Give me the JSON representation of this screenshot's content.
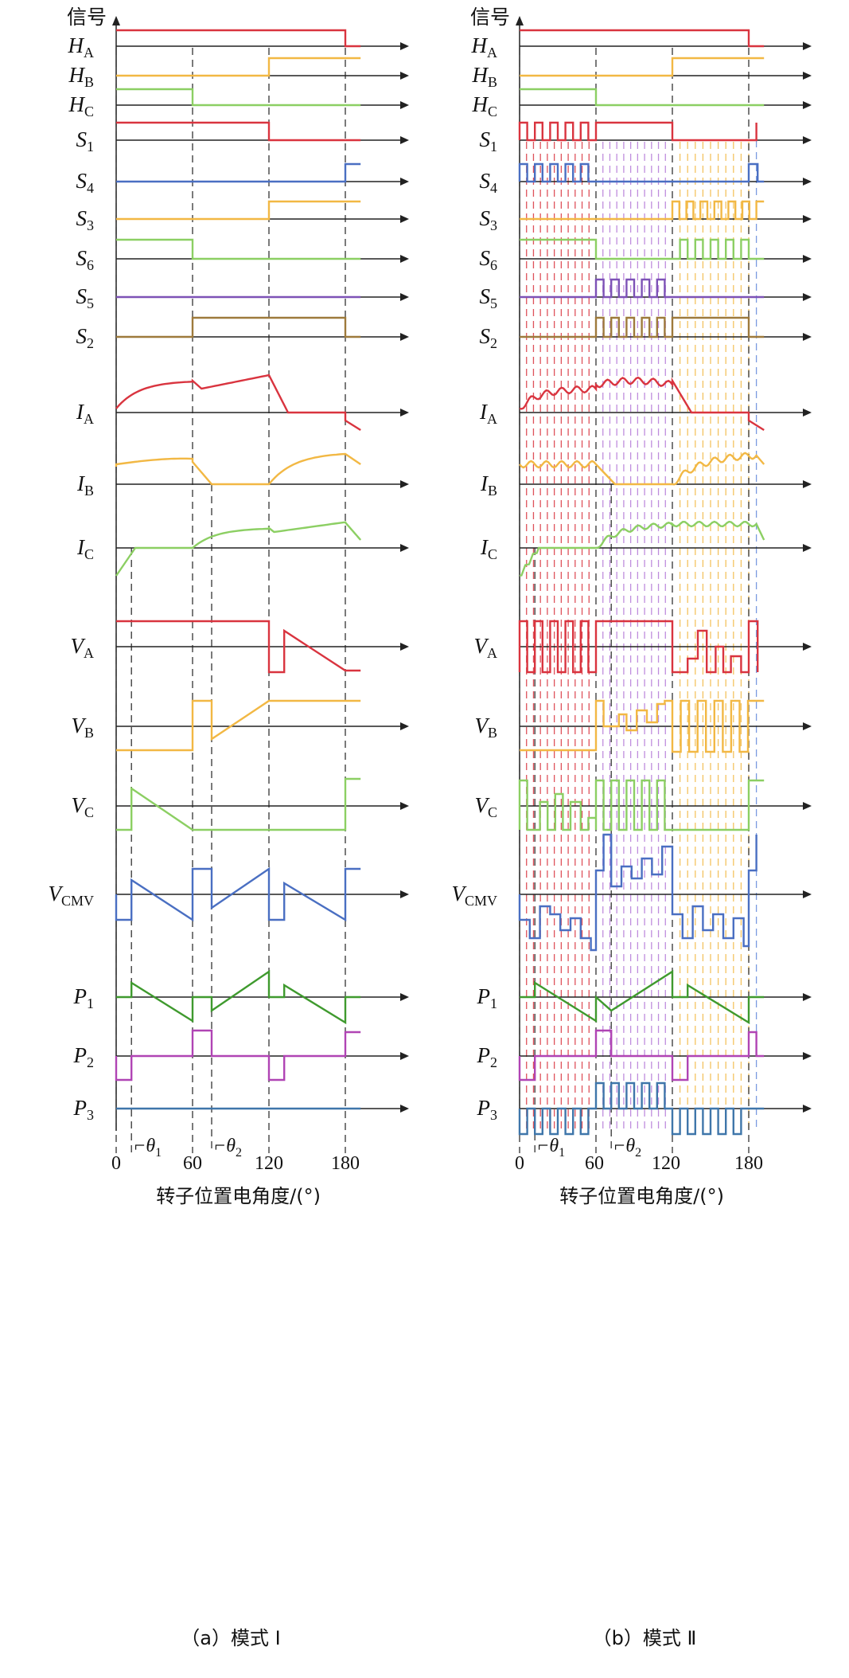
{
  "colors": {
    "red": "#d9343f",
    "yellow": "#f2b844",
    "green": "#8ccf63",
    "blue": "#4a6fc2",
    "purple": "#7d52b6",
    "brown": "#9e7a3c",
    "dkgreen": "#3f9a2e",
    "magenta": "#b044b4",
    "steel": "#3f76aa",
    "lpurple": "#b57ad8",
    "lblue": "#7a9ae0",
    "axis": "#222222"
  },
  "diagram": {
    "y_axis_label": "信号",
    "x_axis_label": "转子位置电角度/(°)",
    "x_ticks": [
      "0",
      "60",
      "120",
      "180"
    ],
    "x_tick_120_combined": "120",
    "theta1": {
      "symbol": "θ",
      "sub": "1"
    },
    "theta2": {
      "symbol": "θ",
      "sub": "2"
    },
    "signals": [
      {
        "id": "HA",
        "main": "H",
        "sub": "A"
      },
      {
        "id": "HB",
        "main": "H",
        "sub": "B"
      },
      {
        "id": "HC",
        "main": "H",
        "sub": "C"
      },
      {
        "id": "S1",
        "main": "S",
        "sub": "1"
      },
      {
        "id": "S4",
        "main": "S",
        "sub": "4"
      },
      {
        "id": "S3",
        "main": "S",
        "sub": "3"
      },
      {
        "id": "S6",
        "main": "S",
        "sub": "6"
      },
      {
        "id": "S5",
        "main": "S",
        "sub": "5"
      },
      {
        "id": "S2",
        "main": "S",
        "sub": "2"
      },
      {
        "id": "IA",
        "main": "I",
        "sub": "A"
      },
      {
        "id": "IB",
        "main": "I",
        "sub": "B"
      },
      {
        "id": "IC",
        "main": "I",
        "sub": "C"
      },
      {
        "id": "VA",
        "main": "V",
        "sub": "A"
      },
      {
        "id": "VB",
        "main": "V",
        "sub": "B"
      },
      {
        "id": "VC",
        "main": "V",
        "sub": "C"
      },
      {
        "id": "VCMV",
        "main": "V",
        "sub": "CMV"
      },
      {
        "id": "P1",
        "main": "P",
        "sub": "1"
      },
      {
        "id": "P2",
        "main": "P",
        "sub": "2"
      },
      {
        "id": "P3",
        "main": "P",
        "sub": "3"
      }
    ],
    "panels": [
      {
        "id": "a",
        "caption": "（a）模式 Ⅰ",
        "mode": "pulse-free"
      },
      {
        "id": "b",
        "caption": "（b）模式 Ⅱ",
        "mode": "pwm-chopped"
      }
    ]
  }
}
